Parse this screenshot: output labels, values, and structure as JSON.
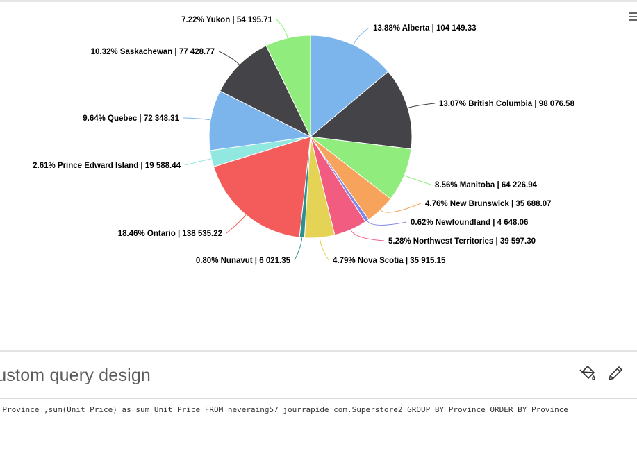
{
  "chart_data": {
    "type": "pie",
    "unit_separator": " | ",
    "slices": [
      {
        "name": "Alberta",
        "percent": "13.88%",
        "value": "104 149.33",
        "raw": 104149.33,
        "color": "#7cb5ec",
        "label_side": "right"
      },
      {
        "name": "British Columbia",
        "percent": "13.07%",
        "value": "98 076.58",
        "raw": 98076.58,
        "color": "#434348",
        "label_side": "right"
      },
      {
        "name": "Manitoba",
        "percent": "8.56%",
        "value": "64 226.94",
        "raw": 64226.94,
        "color": "#90ed7d",
        "label_side": "right"
      },
      {
        "name": "New Brunswick",
        "percent": "4.76%",
        "value": "35 688.07",
        "raw": 35688.07,
        "color": "#f7a35c",
        "label_side": "right"
      },
      {
        "name": "Newfoundland",
        "percent": "0.62%",
        "value": "4 648.06",
        "raw": 4648.06,
        "color": "#8085e9",
        "label_side": "right"
      },
      {
        "name": "Northwest Territories",
        "percent": "5.28%",
        "value": "39 597.30",
        "raw": 39597.3,
        "color": "#f15c80",
        "label_side": "right"
      },
      {
        "name": "Nova Scotia",
        "percent": "4.79%",
        "value": "35 915.15",
        "raw": 35915.15,
        "color": "#e4d354",
        "label_side": "right"
      },
      {
        "name": "Nunavut",
        "percent": "0.80%",
        "value": "6 021.35",
        "raw": 6021.35,
        "color": "#2b908f",
        "label_side": "left"
      },
      {
        "name": "Ontario",
        "percent": "18.46%",
        "value": "138 535.22",
        "raw": 138535.22,
        "color": "#f45b5b",
        "label_side": "left"
      },
      {
        "name": "Prince Edward Island",
        "percent": "2.61%",
        "value": "19 588.44",
        "raw": 19588.44,
        "color": "#91e8e1",
        "label_side": "left"
      },
      {
        "name": "Quebec",
        "percent": "9.64%",
        "value": "72 348.31",
        "raw": 72348.31,
        "color": "#7cb5ec",
        "label_side": "left"
      },
      {
        "name": "Saskachewan",
        "percent": "10.32%",
        "value": "77 428.77",
        "raw": 77428.77,
        "color": "#434348",
        "label_side": "left"
      },
      {
        "name": "Yukon",
        "percent": "7.22%",
        "value": "54 195.71",
        "raw": 54195.71,
        "color": "#90ed7d",
        "label_side": "left"
      }
    ]
  },
  "chart_menu": {
    "icon": "hamburger-menu-icon"
  },
  "query": {
    "title": "Custom query design",
    "sql": "SELECT Province ,sum(Unit_Price) as sum_Unit_Price FROM neveraing57_jourrapide_com.Superstore2 GROUP BY Province ORDER BY Province",
    "actions": [
      {
        "name": "paint-bucket-icon"
      },
      {
        "name": "pencil-icon"
      }
    ]
  }
}
